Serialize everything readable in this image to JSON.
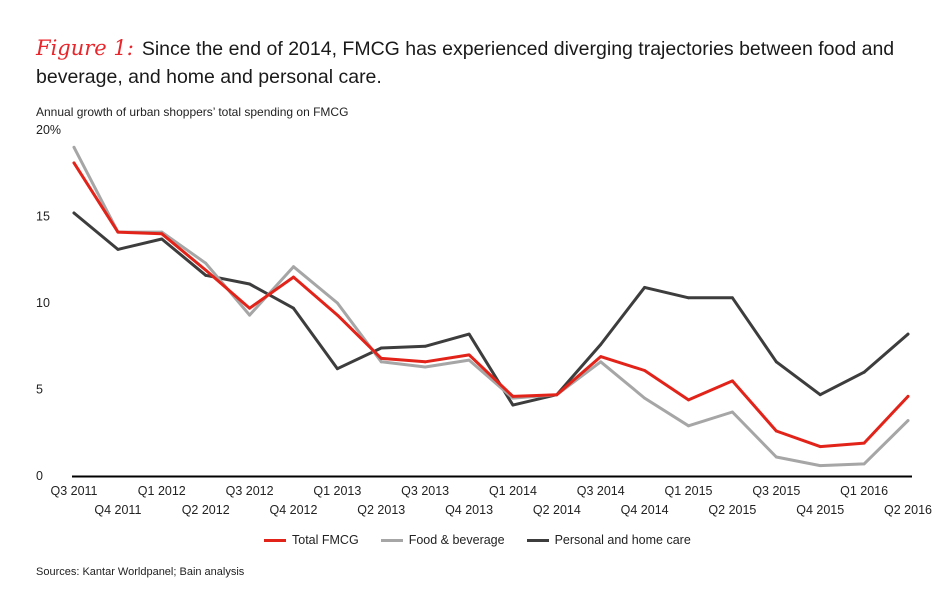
{
  "header": {
    "figure_label": "Figure 1:",
    "title": "Since the end of 2014, FMCG has experienced diverging trajectories between food and beverage, and home and personal care.",
    "subtitle": "Annual growth of urban shoppers’ total spending on FMCG"
  },
  "source": "Sources: Kantar Worldpanel; Bain analysis",
  "colors": {
    "accent": "#e8262b",
    "total": "#e2231a",
    "food": "#a6a6a6",
    "personal": "#3d3d3d",
    "axis": "#000000"
  },
  "chart_data": {
    "type": "line",
    "title": "",
    "xlabel": "",
    "ylabel": "Annual growth of urban shoppers’ total spending on FMCG",
    "ylim": [
      0,
      20
    ],
    "yticks": [
      0,
      5,
      10,
      15,
      20
    ],
    "ytick_labels": [
      "0",
      "5",
      "10",
      "15",
      "20%"
    ],
    "grid": false,
    "legend_position": "bottom",
    "categories": [
      "Q3 2011",
      "Q4 2011",
      "Q1 2012",
      "Q2 2012",
      "Q3 2012",
      "Q4 2012",
      "Q1 2013",
      "Q2 2013",
      "Q3 2013",
      "Q4 2013",
      "Q1 2014",
      "Q2 2014",
      "Q3 2014",
      "Q4 2014",
      "Q1 2015",
      "Q2 2015",
      "Q3 2015",
      "Q4 2015",
      "Q1 2016",
      "Q2 2016"
    ],
    "series": [
      {
        "name": "Total FMCG",
        "color": "#e2231a",
        "values": [
          18.1,
          14.1,
          14.0,
          11.9,
          9.7,
          11.5,
          9.3,
          6.8,
          6.6,
          7.0,
          4.6,
          4.7,
          6.9,
          6.1,
          4.4,
          5.5,
          2.6,
          1.7,
          1.9,
          4.6
        ]
      },
      {
        "name": "Food & beverage",
        "color": "#a6a6a6",
        "values": [
          19.0,
          14.1,
          14.1,
          12.3,
          9.3,
          12.1,
          10.0,
          6.6,
          6.3,
          6.7,
          4.5,
          4.7,
          6.6,
          4.5,
          2.9,
          3.7,
          1.1,
          0.6,
          0.7,
          3.2
        ]
      },
      {
        "name": "Personal and home care",
        "color": "#3d3d3d",
        "values": [
          15.2,
          13.1,
          13.7,
          11.6,
          11.1,
          9.7,
          6.2,
          7.4,
          7.5,
          8.2,
          4.1,
          4.7,
          7.6,
          10.9,
          10.3,
          10.3,
          6.6,
          4.7,
          6.0,
          8.2
        ]
      }
    ]
  }
}
